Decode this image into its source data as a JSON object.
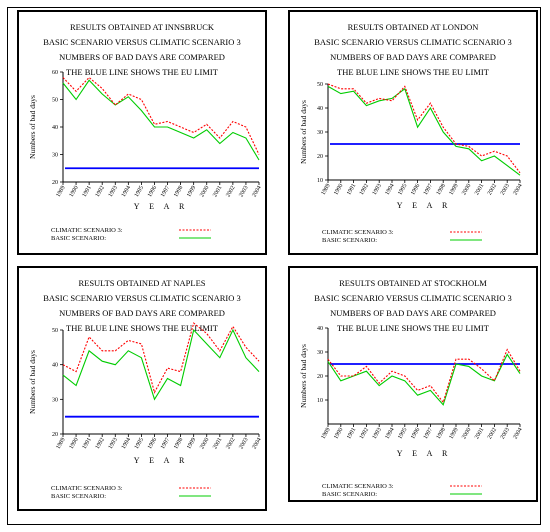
{
  "chart_data": [
    {
      "type": "line",
      "title": [
        "RESULTS OBTAINED AT INNSBRUCK",
        "BASIC SCENARIO VERSUS CLIMATIC SCENARIO 3",
        "NUMBERS OF BAD DAYS ARE COMPARED",
        "THE BLUE LINE SHOWS THE EU LIMIT"
      ],
      "ylabel": "Numbers of bad days",
      "xlabel": "Y E A R",
      "x": [
        "1989",
        "1990",
        "1991",
        "1992",
        "1993",
        "1994",
        "1995",
        "1996",
        "1997",
        "1998",
        "1999",
        "2000",
        "2001",
        "2002",
        "2003",
        "2004"
      ],
      "ylim": [
        20,
        60
      ],
      "yticks": [
        20,
        30,
        40,
        50,
        60
      ],
      "series": [
        {
          "name": "CLIMATIC SCENARIO 3:",
          "color": "#ff0000",
          "style": "dashed",
          "values": [
            58,
            53,
            58,
            54,
            48,
            52,
            50,
            41,
            42,
            40,
            38,
            41,
            36,
            42,
            40,
            30
          ]
        },
        {
          "name": "BASIC SCENARIO:",
          "color": "#00cc00",
          "style": "solid",
          "values": [
            56,
            50,
            57,
            52,
            48,
            51,
            46,
            40,
            40,
            38,
            36,
            39,
            34,
            38,
            36,
            28
          ]
        }
      ],
      "limit": {
        "value": 25,
        "color": "#0000ff"
      }
    },
    {
      "type": "line",
      "title": [
        "RESULTS OBTAINED AT LONDON",
        "BASIC SCENARIO VERSUS CLIMATIC SCENARIO 3",
        "NUMBERS OF BAD DAYS ARE COMPARED",
        "THE BLUE LINE SHOWS THE EU LIMIT"
      ],
      "ylabel": "Numbers of bad days",
      "xlabel": "Y E A R",
      "x": [
        "1989",
        "1990",
        "1991",
        "1992",
        "1993",
        "1994",
        "1995",
        "1996",
        "1997",
        "1998",
        "1999",
        "2000",
        "2001",
        "2002",
        "2003",
        "2004"
      ],
      "ylim": [
        10,
        50
      ],
      "yticks": [
        10,
        20,
        30,
        40,
        50
      ],
      "series": [
        {
          "name": "CLIMATIC SCENARIO 3:",
          "color": "#ff0000",
          "style": "dashed",
          "values": [
            50,
            48,
            48,
            42,
            44,
            43,
            49,
            35,
            42,
            32,
            25,
            24,
            20,
            22,
            20,
            13
          ]
        },
        {
          "name": "BASIC SCENARIO:",
          "color": "#00cc00",
          "style": "solid",
          "values": [
            49,
            46,
            47,
            41,
            43,
            44,
            48,
            32,
            40,
            30,
            24,
            23,
            18,
            20,
            16,
            12
          ]
        }
      ],
      "limit": {
        "value": 25,
        "color": "#0000ff"
      }
    },
    {
      "type": "line",
      "title": [
        "RESULTS OBTAINED AT NAPLES",
        "BASIC SCENARIO VERSUS CLIMATIC SCENARIO 3",
        "NUMBERS OF BAD DAYS ARE COMPARED",
        "THE BLUE LINE SHOWS THE EU LIMIT"
      ],
      "ylabel": "Numbers of bad days",
      "xlabel": "Y E A R",
      "x": [
        "1989",
        "1990",
        "1991",
        "1992",
        "1993",
        "1994",
        "1995",
        "1996",
        "1997",
        "1998",
        "1999",
        "2000",
        "2001",
        "2002",
        "2003",
        "2004"
      ],
      "ylim": [
        20,
        50
      ],
      "yticks": [
        20,
        30,
        40,
        50
      ],
      "series": [
        {
          "name": "CLIMATIC SCENARIO 3:",
          "color": "#ff0000",
          "style": "dashed",
          "values": [
            40,
            38,
            48,
            44,
            44,
            47,
            46,
            32,
            39,
            38,
            52,
            49,
            44,
            51,
            45,
            41
          ]
        },
        {
          "name": "BASIC SCENARIO:",
          "color": "#00cc00",
          "style": "solid",
          "values": [
            37,
            34,
            44,
            41,
            40,
            44,
            42,
            30,
            36,
            34,
            50,
            46,
            42,
            50,
            42,
            38
          ]
        }
      ],
      "limit": {
        "value": 25,
        "color": "#0000ff"
      }
    },
    {
      "type": "line",
      "title": [
        "RESULTS OBTAINED AT STOCKHOLM",
        "BASIC SCENARIO VERSUS CLIMATIC SCENARIO 3",
        "NUMBERS OF BAD DAYS ARE COMPARED",
        "THE BLUE LINE SHOWS THE EU LIMIT"
      ],
      "ylabel": "Numbers of bad days",
      "xlabel": "Y E A R",
      "x": [
        "1989",
        "1990",
        "1991",
        "1992",
        "1993",
        "1994",
        "1995",
        "1996",
        "1997",
        "1998",
        "1999",
        "2000",
        "2001",
        "2002",
        "2003",
        "2004"
      ],
      "ylim": [
        0,
        40
      ],
      "yticks": [
        10,
        20,
        30,
        40
      ],
      "series": [
        {
          "name": "CLIMATIC SCENARIO 3:",
          "color": "#ff0000",
          "style": "dashed",
          "values": [
            27,
            20,
            20,
            24,
            17,
            22,
            20,
            14,
            16,
            9,
            27,
            27,
            23,
            18,
            31,
            22
          ]
        },
        {
          "name": "BASIC SCENARIO:",
          "color": "#00cc00",
          "style": "solid",
          "values": [
            26,
            18,
            20,
            22,
            16,
            20,
            18,
            12,
            14,
            8,
            25,
            24,
            20,
            18,
            29,
            21
          ]
        }
      ],
      "limit": {
        "value": 25,
        "color": "#0000ff"
      }
    }
  ]
}
